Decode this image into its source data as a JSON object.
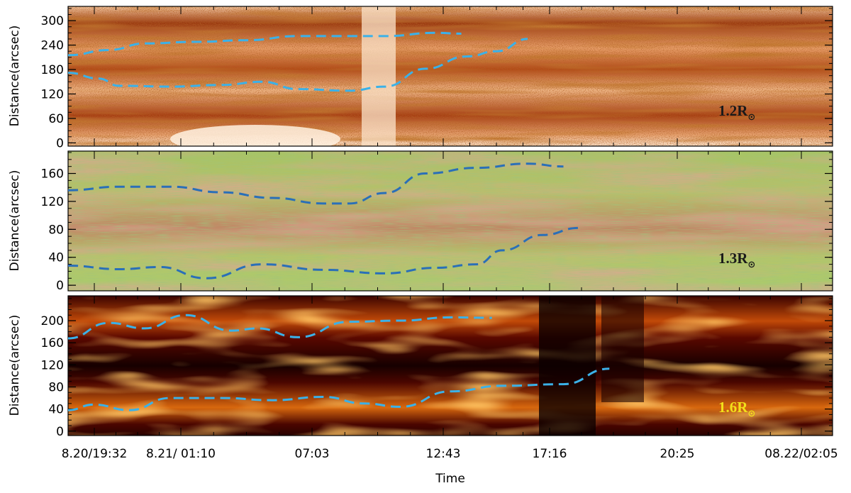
{
  "figure": {
    "xlabel": "Time",
    "x_tick_labels": [
      "8.20/19:32",
      "8.21/ 01:10",
      "07:03",
      "12:43",
      "17:16",
      "20:25",
      "08.22/02:05"
    ],
    "colors": {
      "panel1_dark": "#5a0f02",
      "panel1_mid": "#c25a1c",
      "panel1_light": "#fde3c6",
      "panel2_green": "#b6cf6a",
      "panel2_red": "#c07a58",
      "panel3_dark": "#120000",
      "panel3_bright": "#ffb23a",
      "contour": "#3bb1e8",
      "label_dark": "#1a1a1a",
      "label_yellow": "#f2e01a"
    }
  },
  "chart_data": [
    {
      "type": "heatmap",
      "ylabel": "Distance(arcsec)",
      "ylim": [
        -8,
        335
      ],
      "y_ticks": [
        0,
        60,
        120,
        180,
        240,
        300
      ],
      "annotation": {
        "text": "1.2R",
        "subscript": "⊙"
      },
      "contours": [
        {
          "values": [
            [
              0,
              215
            ],
            [
              0.08,
              228
            ],
            [
              0.15,
              244
            ],
            [
              0.25,
              248
            ],
            [
              0.35,
              252
            ],
            [
              0.45,
              262
            ],
            [
              0.55,
              262
            ],
            [
              0.62,
              262
            ],
            [
              0.72,
              270
            ],
            [
              0.77,
              268
            ]
          ]
        },
        {
          "values": [
            [
              0,
              172
            ],
            [
              0.06,
              158
            ],
            [
              0.1,
              140
            ],
            [
              0.2,
              138
            ],
            [
              0.3,
              142
            ],
            [
              0.38,
              150
            ],
            [
              0.45,
              132
            ],
            [
              0.55,
              128
            ],
            [
              0.62,
              138
            ],
            [
              0.7,
              182
            ],
            [
              0.78,
              212
            ],
            [
              0.84,
              225
            ],
            [
              0.9,
              255
            ]
          ]
        }
      ]
    },
    {
      "type": "heatmap",
      "ylabel": "Distance(arcsec)",
      "ylim": [
        -8,
        192
      ],
      "y_ticks": [
        0,
        40,
        80,
        120,
        160
      ],
      "annotation": {
        "text": "1.3R",
        "subscript": "⊙"
      },
      "contours": [
        {
          "values": [
            [
              0,
              136
            ],
            [
              0.1,
              141
            ],
            [
              0.2,
              141
            ],
            [
              0.3,
              133
            ],
            [
              0.4,
              125
            ],
            [
              0.5,
              117
            ],
            [
              0.55,
              117
            ],
            [
              0.62,
              132
            ],
            [
              0.7,
              160
            ],
            [
              0.8,
              168
            ],
            [
              0.9,
              174
            ],
            [
              0.97,
              170
            ]
          ]
        },
        {
          "values": [
            [
              0,
              28
            ],
            [
              0.1,
              23
            ],
            [
              0.18,
              26
            ],
            [
              0.27,
              10
            ],
            [
              0.38,
              30
            ],
            [
              0.5,
              22
            ],
            [
              0.62,
              17
            ],
            [
              0.72,
              25
            ],
            [
              0.8,
              30
            ],
            [
              0.85,
              50
            ],
            [
              0.93,
              72
            ],
            [
              1.0,
              82
            ]
          ]
        }
      ]
    },
    {
      "type": "heatmap",
      "ylabel": "Distance(arcsec)",
      "ylim": [
        -8,
        245
      ],
      "y_ticks": [
        0,
        40,
        80,
        120,
        160,
        200
      ],
      "annotation": {
        "text": "1.6R",
        "subscript": "⊙"
      },
      "contours": [
        {
          "values": [
            [
              0,
              168
            ],
            [
              0.08,
              196
            ],
            [
              0.15,
              186
            ],
            [
              0.23,
              210
            ],
            [
              0.32,
              182
            ],
            [
              0.37,
              186
            ],
            [
              0.45,
              170
            ],
            [
              0.55,
              198
            ],
            [
              0.65,
              200
            ],
            [
              0.75,
              206
            ],
            [
              0.83,
              205
            ]
          ]
        },
        {
          "values": [
            [
              0,
              38
            ],
            [
              0.05,
              48
            ],
            [
              0.12,
              38
            ],
            [
              0.2,
              60
            ],
            [
              0.3,
              60
            ],
            [
              0.4,
              56
            ],
            [
              0.5,
              62
            ],
            [
              0.58,
              50
            ],
            [
              0.65,
              44
            ],
            [
              0.75,
              72
            ],
            [
              0.85,
              82
            ],
            [
              0.97,
              85
            ],
            [
              1.06,
              113
            ]
          ]
        }
      ]
    }
  ]
}
